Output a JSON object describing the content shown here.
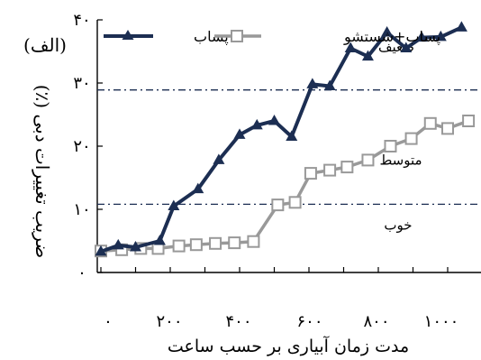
{
  "chart_data": {
    "type": "line",
    "title": "",
    "xlabel": "مدت زمان آبیاری بر حسب ساعت",
    "ylabel": "ضریب تغییرات دبی (٪)",
    "ylabel_unit": "(الف)",
    "xlim": [
      0,
      1100
    ],
    "ylim": [
      0,
      40
    ],
    "x_ticks": [
      0,
      200,
      400,
      600,
      800,
      1000
    ],
    "x_tick_labels": [
      "۰",
      "۲۰۰",
      "۴۰۰",
      "۶۰۰",
      "۸۰۰",
      "۱۰۰۰"
    ],
    "y_ticks": [
      0,
      10,
      20,
      30,
      40
    ],
    "y_tick_labels": [
      "۰",
      "۱۰",
      "۲۰",
      "۳۰",
      "۴۰"
    ],
    "thresholds": [
      10.8,
      28.9
    ],
    "zones": [
      {
        "label": "ضعیف",
        "y": 35.7
      },
      {
        "label": "متوسط",
        "y": 17.8
      },
      {
        "label": "خوب",
        "y": 7.5
      }
    ],
    "legend_position": "top",
    "series": [
      {
        "name": "پساب",
        "color": "#1c2e52",
        "marker": "triangle",
        "x": [
          0,
          50,
          100,
          170,
          210,
          280,
          340,
          400,
          450,
          500,
          550,
          610,
          660,
          720,
          770,
          825,
          880,
          925,
          980,
          1040
        ],
        "y": [
          3.3,
          4.3,
          4.0,
          5.0,
          10.5,
          13.2,
          17.8,
          21.8,
          23.3,
          24.0,
          21.5,
          29.8,
          29.5,
          35.5,
          34.2,
          38.0,
          35.5,
          37.2,
          37.3,
          38.8
        ]
      },
      {
        "name": "پساب+شستشو",
        "color": "#999999",
        "marker": "square",
        "x": [
          0,
          60,
          115,
          165,
          225,
          275,
          330,
          385,
          440,
          510,
          560,
          605,
          660,
          710,
          770,
          835,
          895,
          950,
          1000,
          1060
        ],
        "y": [
          3.4,
          3.6,
          3.8,
          3.8,
          4.2,
          4.4,
          4.6,
          4.7,
          4.9,
          10.7,
          11.1,
          15.7,
          16.2,
          16.7,
          17.8,
          20.0,
          21.2,
          23.6,
          22.8,
          24.0
        ]
      }
    ]
  }
}
